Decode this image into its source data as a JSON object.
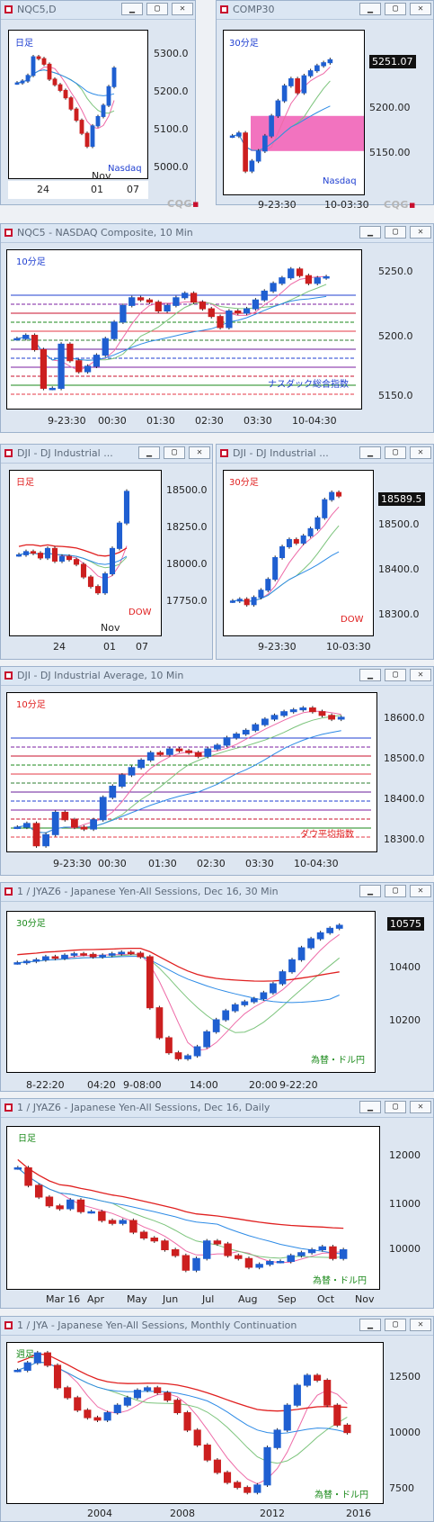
{
  "colors": {
    "up": "#1f5fd1",
    "down": "#cc1f1f",
    "ma_pink": "#ee6aa7",
    "ma_green": "#7cc47c",
    "ma_blue": "#2e8be6",
    "ma_red": "#e02020"
  },
  "windows": {
    "w1": {
      "title": "NQC5,D",
      "tag": "日足",
      "tag_color": "#1f3fd1",
      "label": "Nasdaq",
      "label_color": "#1f3fd1",
      "y_labels": [
        "5300.0",
        "5200.0",
        "5100.0",
        "5000.0"
      ],
      "x_labels": [
        "24",
        "01",
        "07"
      ],
      "x_extra": "Nov"
    },
    "w2": {
      "title": "COMP30",
      "tag": "30分足",
      "tag_color": "#1f3fd1",
      "label": "Nasdaq",
      "label_color": "#1f3fd1",
      "price": "5251.07",
      "y_labels": [
        "5200.00",
        "5150.00"
      ],
      "x_labels": [
        "9-23:30",
        "10-03:30"
      ]
    },
    "w3": {
      "title": "NQC5 - NASDAQ Composite, 10 Min",
      "tag": "10分足",
      "tag_color": "#1f3fd1",
      "label": "ナスダック総合指数",
      "label_color": "#1f3fd1",
      "y_labels": [
        "5250.0",
        "5200.0",
        "5150.0"
      ],
      "x_labels": [
        "9-23:30",
        "00:30",
        "01:30",
        "02:30",
        "03:30",
        "10-04:30"
      ]
    },
    "w4": {
      "title": "DJI - DJ Industrial ...",
      "tag": "日足",
      "tag_color": "#e02020",
      "label": "DOW",
      "label_color": "#e02020",
      "y_labels": [
        "18500.0",
        "18250.0",
        "18000.0",
        "17750.0"
      ],
      "x_labels": [
        "24",
        "01",
        "07"
      ],
      "x_extra": "Nov"
    },
    "w5": {
      "title": "DJI - DJ Industrial ...",
      "tag": "30分足",
      "tag_color": "#e02020",
      "label": "DOW",
      "label_color": "#e02020",
      "price": "18589.5",
      "y_labels": [
        "18500.0",
        "18400.0",
        "18300.0"
      ],
      "x_labels": [
        "9-23:30",
        "10-03:30"
      ]
    },
    "w6": {
      "title": "DJI - DJ Industrial Average, 10 Min",
      "tag": "10分足",
      "tag_color": "#e02020",
      "label": "ダウ平均指数",
      "label_color": "#e02020",
      "y_labels": [
        "18600.0",
        "18500.0",
        "18400.0",
        "18300.0"
      ],
      "x_labels": [
        "9-23:30",
        "00:30",
        "01:30",
        "02:30",
        "03:30",
        "10-04:30"
      ]
    },
    "w7": {
      "title": "1 / JYAZ6 - Japanese Yen-All Sessions, Dec 16, 30 Min",
      "tag": "30分足",
      "tag_color": "#1b8a1b",
      "label": "為替・ドル円",
      "label_color": "#1b8a1b",
      "price": "10575",
      "y_labels": [
        "10400",
        "10200"
      ],
      "x_labels": [
        "8-22:20",
        "04:20",
        "9-08:00",
        "14:00",
        "20:00",
        "9-22:20"
      ]
    },
    "w8": {
      "title": "1 / JYAZ6 - Japanese Yen-All Sessions, Dec 16, Daily",
      "tag": "日足",
      "tag_color": "#1b8a1b",
      "label": "為替・ドル円",
      "label_color": "#1b8a1b",
      "y_labels": [
        "12000",
        "11000",
        "10000"
      ],
      "x_labels": [
        "Mar 16",
        "Apr",
        "May",
        "Jun",
        "Jul",
        "Aug",
        "Sep",
        "Oct",
        "Nov"
      ]
    },
    "w9": {
      "title": "1 / JYA - Japanese Yen-All Sessions, Monthly Continuation",
      "tag": "週足",
      "tag_color": "#1b8a1b",
      "label": "為替・ドル円",
      "label_color": "#1b8a1b",
      "y_labels": [
        "12500",
        "10000",
        "7500"
      ],
      "x_labels": [
        "2004",
        "2008",
        "2012",
        "2016"
      ]
    }
  },
  "chart_data": [
    {
      "type": "candlestick",
      "title": "NQC5,D",
      "ylim": [
        4960,
        5360
      ],
      "series": [
        {
          "name": "close",
          "values": [
            5220,
            5225,
            5240,
            5290,
            5285,
            5270,
            5230,
            5215,
            5200,
            5180,
            5150,
            5120,
            5085,
            5050,
            5105,
            5130,
            5160,
            5210,
            5260
          ]
        }
      ]
    },
    {
      "type": "candlestick",
      "title": "COMP30",
      "ylim": [
        5115,
        5280
      ],
      "series": [
        {
          "name": "close",
          "values": [
            5175,
            5178,
            5140,
            5150,
            5160,
            5175,
            5195,
            5210,
            5225,
            5232,
            5218,
            5235,
            5240,
            5245,
            5248,
            5251
          ]
        }
      ]
    },
    {
      "type": "candlestick",
      "title": "NQC5 - NASDAQ Composite, 10 Min",
      "ylim": [
        5130,
        5275
      ],
      "series": [
        {
          "name": "close",
          "values": [
            5195,
            5198,
            5185,
            5150,
            5150,
            5190,
            5175,
            5165,
            5170,
            5180,
            5195,
            5210,
            5225,
            5232,
            5230,
            5228,
            5220,
            5225,
            5232,
            5236,
            5228,
            5222,
            5215,
            5205,
            5220,
            5218,
            5222,
            5230,
            5238,
            5245,
            5250,
            5258,
            5252,
            5245,
            5250,
            5251
          ]
        }
      ]
    },
    {
      "type": "candlestick",
      "title": "DJI - DJ Industrial (daily)",
      "ylim": [
        17640,
        18690
      ],
      "series": [
        {
          "name": "close",
          "values": [
            18160,
            18180,
            18170,
            18140,
            18200,
            18120,
            18150,
            18130,
            18100,
            18020,
            17960,
            17920,
            18040,
            18200,
            18360,
            18560
          ]
        }
      ]
    },
    {
      "type": "candlestick",
      "title": "DJI - DJ Industrial (30 min)",
      "ylim": [
        18200,
        18660
      ],
      "series": [
        {
          "name": "close",
          "values": [
            18300,
            18305,
            18290,
            18310,
            18330,
            18360,
            18420,
            18450,
            18470,
            18460,
            18480,
            18500,
            18530,
            18580,
            18600,
            18590
          ]
        }
      ]
    },
    {
      "type": "candlestick",
      "title": "DJI - DJ Industrial Average, 10 Min",
      "ylim": [
        18230,
        18660
      ],
      "series": [
        {
          "name": "close",
          "values": [
            18300,
            18310,
            18250,
            18280,
            18340,
            18320,
            18300,
            18295,
            18320,
            18380,
            18410,
            18440,
            18460,
            18480,
            18500,
            18495,
            18510,
            18505,
            18500,
            18490,
            18510,
            18520,
            18540,
            18550,
            18560,
            18575,
            18590,
            18600,
            18610,
            18615,
            18620,
            18610,
            18600,
            18590,
            18595
          ]
        }
      ]
    },
    {
      "type": "candlestick",
      "title": "JYAZ6 30 Min",
      "ylim": [
        10080,
        10620
      ],
      "series": [
        {
          "name": "close",
          "values": [
            10450,
            10455,
            10460,
            10470,
            10465,
            10475,
            10480,
            10478,
            10470,
            10475,
            10480,
            10485,
            10482,
            10470,
            10300,
            10200,
            10150,
            10130,
            10140,
            10170,
            10220,
            10260,
            10290,
            10310,
            10320,
            10330,
            10350,
            10380,
            10420,
            10460,
            10500,
            10530,
            10550,
            10565,
            10575
          ]
        }
      ]
    },
    {
      "type": "candlestick",
      "title": "JYAZ6 Daily",
      "ylim": [
        9700,
        12500
      ],
      "series": [
        {
          "name": "close",
          "values": [
            11800,
            11500,
            11300,
            11150,
            11100,
            11250,
            11050,
            11050,
            10900,
            10850,
            10900,
            10700,
            10600,
            10550,
            10400,
            10300,
            10050,
            10250,
            10550,
            10500,
            10300,
            10250,
            10100,
            10150,
            10200,
            10200,
            10300,
            10350,
            10400,
            10450,
            10250,
            10400
          ]
        }
      ]
    },
    {
      "type": "candlestick",
      "title": "JYA Monthly",
      "ylim": [
        7200,
        13700
      ],
      "series": [
        {
          "name": "close",
          "values": [
            12600,
            12900,
            13300,
            12800,
            11900,
            11500,
            11000,
            10700,
            10600,
            10900,
            11200,
            11500,
            11800,
            11900,
            11700,
            11400,
            10900,
            10200,
            9600,
            9000,
            8500,
            8100,
            7900,
            7700,
            8000,
            9500,
            10200,
            11200,
            12000,
            12400,
            12200,
            11200,
            10400,
            10100
          ]
        }
      ]
    }
  ]
}
